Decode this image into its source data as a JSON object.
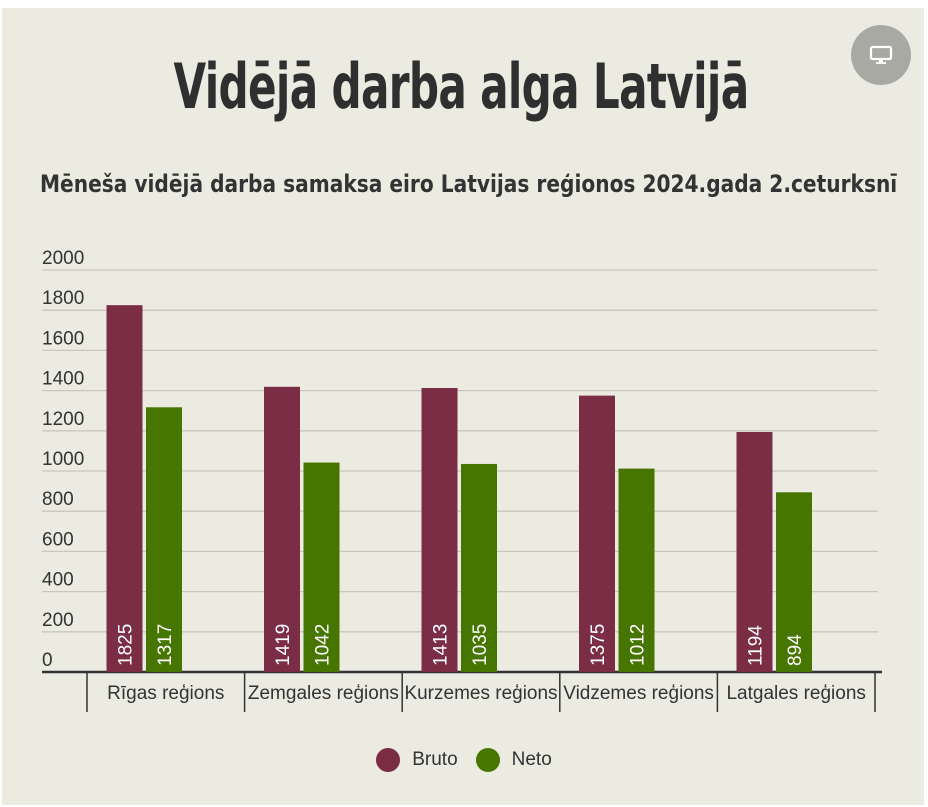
{
  "title": "Vidējā darba alga Latvijā",
  "subtitle": "Mēneša vidējā darba samaksa eiro Latvijas reģionos 2024.gada 2.ceturksnī",
  "present_button": {
    "icon": "monitor-icon"
  },
  "colors": {
    "bruto": "#7b2d45",
    "neto": "#467500",
    "background": "#ebebe2"
  },
  "chart_data": {
    "type": "bar",
    "categories": [
      "Rīgas reģions",
      "Zemgales reģions",
      "Kurzemes reģions",
      "Vidzemes reģions",
      "Latgales reģions"
    ],
    "series": [
      {
        "name": "Bruto",
        "values": [
          1825,
          1419,
          1413,
          1375,
          1194
        ]
      },
      {
        "name": "Neto",
        "values": [
          1317,
          1042,
          1035,
          1012,
          894
        ]
      }
    ],
    "ylim": [
      0,
      2000
    ],
    "yticks": [
      "0",
      "200",
      "400",
      "600",
      "800",
      "1000",
      "1200",
      "1400",
      "1600",
      "1800",
      "2000"
    ],
    "grid": true,
    "legend": "bottom"
  }
}
